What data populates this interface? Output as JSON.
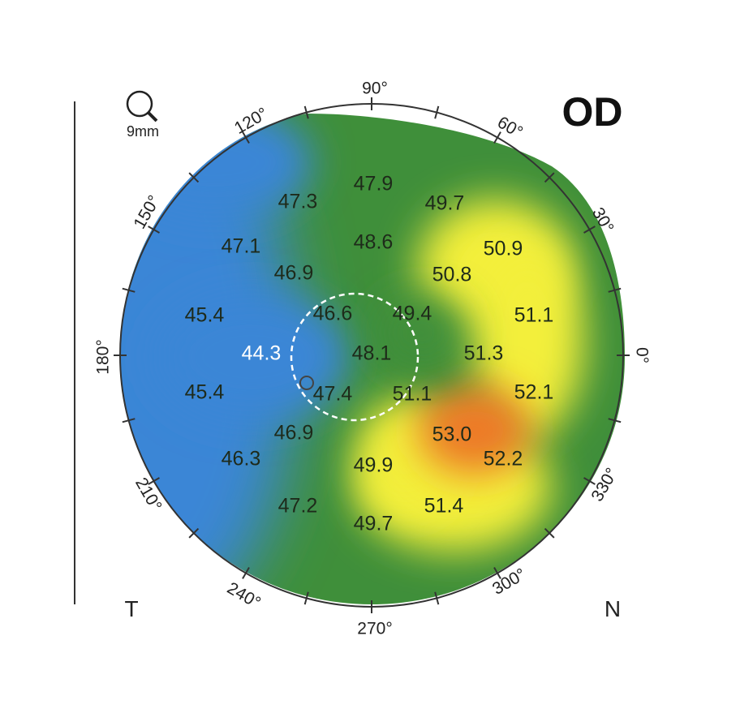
{
  "eye_label": "OD",
  "zoom_label": "9mm",
  "side_labels": {
    "temporal": "T",
    "nasal": "N"
  },
  "angle_labels": [
    "90°",
    "60°",
    "30°",
    "0°",
    "330°",
    "300°",
    "270°",
    "240°",
    "210°",
    "180°",
    "150°",
    "120°"
  ],
  "colors": {
    "blue": "#3a86d6",
    "green": "#3f8f3a",
    "yellow": "#f3ef3a",
    "orange": "#ee7a26",
    "ring": "#333333"
  },
  "values": [
    {
      "id": "v-47-9",
      "label": "47.9"
    },
    {
      "id": "v-47-3",
      "label": "47.3"
    },
    {
      "id": "v-49-7-top",
      "label": "49.7"
    },
    {
      "id": "v-47-1",
      "label": "47.1"
    },
    {
      "id": "v-48-6",
      "label": "48.6"
    },
    {
      "id": "v-50-9",
      "label": "50.9"
    },
    {
      "id": "v-46-9-top",
      "label": "46.9"
    },
    {
      "id": "v-50-8",
      "label": "50.8"
    },
    {
      "id": "v-45-4-top",
      "label": "45.4"
    },
    {
      "id": "v-46-6",
      "label": "46.6"
    },
    {
      "id": "v-49-4",
      "label": "49.4"
    },
    {
      "id": "v-51-1-right",
      "label": "51.1"
    },
    {
      "id": "v-44-3",
      "label": "44.3"
    },
    {
      "id": "v-48-1",
      "label": "48.1"
    },
    {
      "id": "v-51-3",
      "label": "51.3"
    },
    {
      "id": "v-45-4-bottom",
      "label": "45.4"
    },
    {
      "id": "v-47-4",
      "label": "47.4"
    },
    {
      "id": "v-51-1-center",
      "label": "51.1"
    },
    {
      "id": "v-52-1",
      "label": "52.1"
    },
    {
      "id": "v-46-9-bottom",
      "label": "46.9"
    },
    {
      "id": "v-53-0",
      "label": "53.0"
    },
    {
      "id": "v-46-3",
      "label": "46.3"
    },
    {
      "id": "v-49-9",
      "label": "49.9"
    },
    {
      "id": "v-52-2",
      "label": "52.2"
    },
    {
      "id": "v-47-2",
      "label": "47.2"
    },
    {
      "id": "v-51-4",
      "label": "51.4"
    },
    {
      "id": "v-49-7-bottom",
      "label": "49.7"
    }
  ]
}
